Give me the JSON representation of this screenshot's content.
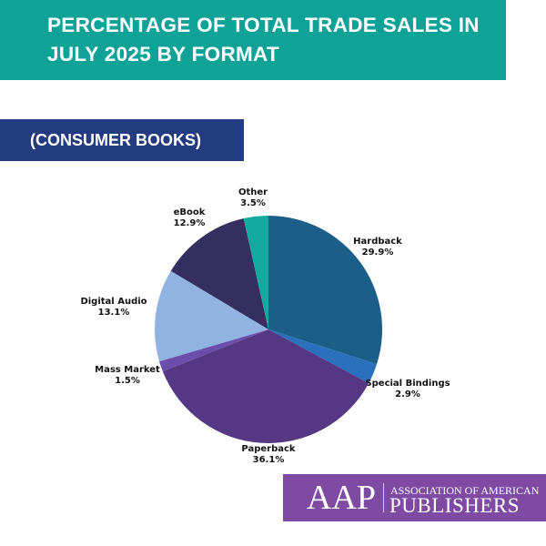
{
  "header": {
    "title": "PERCENTAGE OF TOTAL TRADE SALES IN JULY 2025 BY FORMAT"
  },
  "banner": {
    "subtitle": "(CONSUMER BOOKS)"
  },
  "logo": {
    "abbr": "AAP",
    "line1": "ASSOCIATION OF AMERICAN",
    "line2": "PUBLISHERS"
  },
  "chart_data": {
    "type": "pie",
    "title": "PERCENTAGE OF TOTAL TRADE SALES IN JULY 2025 BY FORMAT",
    "subtitle": "(CONSUMER BOOKS)",
    "start": "12 o'clock, clockwise",
    "slices": [
      {
        "name": "Hardback",
        "value": 29.9,
        "label": "29.9%",
        "color": "#1b5f89"
      },
      {
        "name": "Special Bindings",
        "value": 2.9,
        "label": "2.9%",
        "color": "#2a70bd"
      },
      {
        "name": "Paperback",
        "value": 36.1,
        "label": "36.1%",
        "color": "#553784"
      },
      {
        "name": "Mass Market",
        "value": 1.5,
        "label": "1.5%",
        "color": "#6b4dab"
      },
      {
        "name": "Digital Audio",
        "value": 13.1,
        "label": "13.1%",
        "color": "#90b3e2"
      },
      {
        "name": "eBook",
        "value": 12.9,
        "label": "12.9%",
        "color": "#352f5f"
      },
      {
        "name": "Other",
        "value": 3.5,
        "label": "3.5%",
        "color": "#12aa9f"
      }
    ]
  }
}
